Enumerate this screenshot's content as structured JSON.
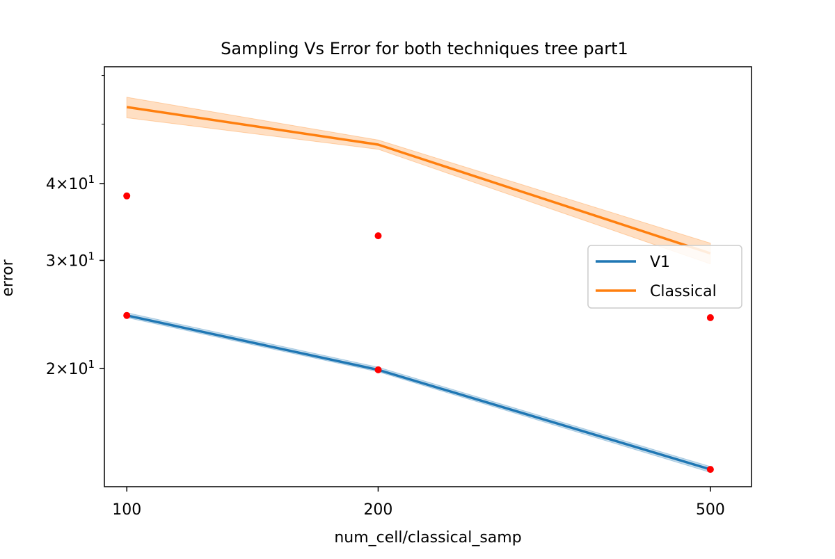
{
  "chart_data": {
    "type": "line",
    "title": "Sampling Vs Error for both techniques tree part1",
    "xlabel": "num_cell/classical_samp",
    "ylabel": "error",
    "x_scale": "log",
    "y_scale": "log",
    "x": [
      100,
      200,
      500
    ],
    "x_tick_labels": [
      "100",
      "200",
      "500"
    ],
    "xlim": [
      94,
      560
    ],
    "ylim": [
      12.84,
      62.0
    ],
    "y_ticks": [
      {
        "value": 20,
        "mantissa": "2",
        "base": "10",
        "exp": "1"
      },
      {
        "value": 30,
        "mantissa": "3",
        "base": "10",
        "exp": "1"
      },
      {
        "value": 40,
        "mantissa": "4",
        "base": "10",
        "exp": "1"
      }
    ],
    "y_minor_ticks": [
      50,
      60
    ],
    "series": [
      {
        "name": "V1",
        "color": "#1f77b4",
        "values": [
          24.4,
          19.9,
          13.7
        ],
        "band_lower": [
          24.2,
          19.75,
          13.55
        ],
        "band_upper": [
          24.65,
          20.1,
          13.85
        ]
      },
      {
        "name": "Classical",
        "color": "#ff7f0e",
        "values": [
          53.3,
          46.3,
          30.8
        ],
        "band_lower": [
          51.2,
          45.5,
          29.6
        ],
        "band_upper": [
          55.3,
          47.1,
          32.0
        ]
      }
    ],
    "points": {
      "color": "#ff0000",
      "values": [
        {
          "x": 100,
          "y": 38.2
        },
        {
          "x": 100,
          "y": 24.4
        },
        {
          "x": 200,
          "y": 32.9
        },
        {
          "x": 200,
          "y": 19.9
        },
        {
          "x": 500,
          "y": 24.2
        },
        {
          "x": 500,
          "y": 13.7
        }
      ]
    },
    "grid": false,
    "legend_position": "center-right"
  }
}
